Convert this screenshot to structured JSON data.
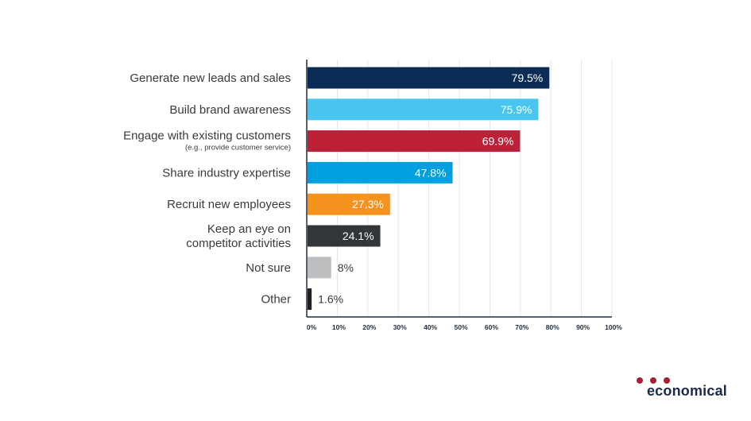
{
  "chart_data": {
    "type": "bar",
    "orientation": "horizontal",
    "categories": [
      {
        "label": "Generate new leads and sales",
        "sublabel": ""
      },
      {
        "label": "Build brand awareness",
        "sublabel": ""
      },
      {
        "label": "Engage with existing customers",
        "sublabel": "(e.g., provide customer service)"
      },
      {
        "label": "Share industry expertise",
        "sublabel": ""
      },
      {
        "label": "Recruit new employees",
        "sublabel": ""
      },
      {
        "label": "Keep an eye on competitor activities",
        "sublabel": ""
      },
      {
        "label": "Not sure",
        "sublabel": ""
      },
      {
        "label": "Other",
        "sublabel": ""
      }
    ],
    "values": [
      79.5,
      75.9,
      69.9,
      47.8,
      27.3,
      24.1,
      8,
      1.6
    ],
    "value_labels": [
      "79.5%",
      "75.9%",
      "69.9%",
      "47.8%",
      "27.3%",
      "24.1%",
      "8%",
      "1.6%"
    ],
    "colors": [
      "#0b2d55",
      "#49c6ef",
      "#bd2138",
      "#009fdf",
      "#f6921e",
      "#333638",
      "#bcbec0",
      "#231f20"
    ],
    "label_inside": [
      true,
      true,
      true,
      true,
      true,
      true,
      false,
      false
    ],
    "xlim": [
      0,
      100
    ],
    "xticks": [
      0,
      10,
      20,
      30,
      40,
      50,
      60,
      70,
      80,
      90,
      100
    ],
    "xtick_labels": [
      "0%",
      "10%",
      "20%",
      "30%",
      "40%",
      "50%",
      "60%",
      "70%",
      "80%",
      "90%",
      "100%"
    ],
    "grid": true,
    "title": "",
    "xlabel": "",
    "ylabel": ""
  },
  "brand": {
    "name": "economical",
    "dot_color": "#a51f35"
  }
}
